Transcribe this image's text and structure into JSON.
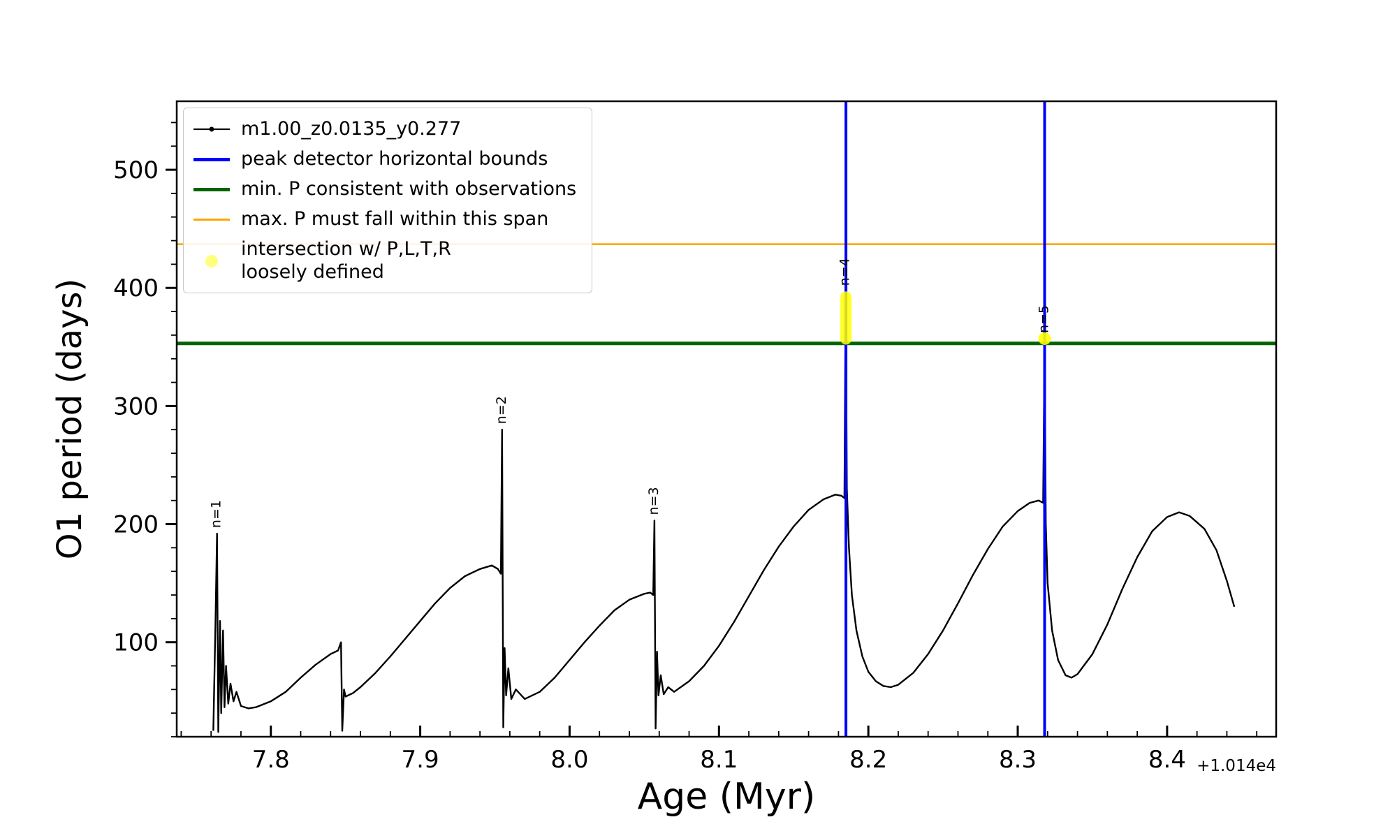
{
  "chart_data": {
    "type": "line",
    "title": "",
    "xlabel": "Age (Myr)",
    "ylabel": "O1 period (days)",
    "x_offset_text": "+1.014e4",
    "xlim": [
      7.737,
      8.473
    ],
    "ylim": [
      20,
      558
    ],
    "grid": false,
    "x_ticks": [
      7.8,
      7.9,
      8.0,
      8.1,
      8.2,
      8.3,
      8.4
    ],
    "x_tick_labels": [
      "7.8",
      "7.9",
      "8.0",
      "8.1",
      "8.2",
      "8.3",
      "8.4"
    ],
    "x_minor_step": 0.02,
    "y_ticks": [
      100,
      200,
      300,
      400,
      500
    ],
    "y_tick_labels": [
      "100",
      "200",
      "300",
      "400",
      "500"
    ],
    "y_minor_step": 20,
    "series": [
      {
        "name": "m1.00_z0.0135_y0.277",
        "color": "#000000",
        "points": [
          [
            7.7615,
            25
          ],
          [
            7.763,
            120
          ],
          [
            7.764,
            192
          ],
          [
            7.7648,
            24
          ],
          [
            7.766,
            118
          ],
          [
            7.7668,
            40
          ],
          [
            7.768,
            110
          ],
          [
            7.769,
            45
          ],
          [
            7.77,
            80
          ],
          [
            7.7715,
            48
          ],
          [
            7.773,
            65
          ],
          [
            7.775,
            50
          ],
          [
            7.777,
            58
          ],
          [
            7.78,
            46
          ],
          [
            7.785,
            44
          ],
          [
            7.79,
            45
          ],
          [
            7.8,
            50
          ],
          [
            7.81,
            58
          ],
          [
            7.82,
            70
          ],
          [
            7.83,
            81
          ],
          [
            7.84,
            90
          ],
          [
            7.845,
            93
          ],
          [
            7.847,
            100
          ],
          [
            7.8478,
            25
          ],
          [
            7.849,
            60
          ],
          [
            7.85,
            54
          ],
          [
            7.855,
            57
          ],
          [
            7.86,
            62
          ],
          [
            7.87,
            74
          ],
          [
            7.88,
            88
          ],
          [
            7.89,
            103
          ],
          [
            7.9,
            118
          ],
          [
            7.91,
            133
          ],
          [
            7.92,
            146
          ],
          [
            7.93,
            156
          ],
          [
            7.94,
            162
          ],
          [
            7.948,
            165
          ],
          [
            7.952,
            162
          ],
          [
            7.954,
            158
          ],
          [
            7.9548,
            280
          ],
          [
            7.9556,
            28
          ],
          [
            7.9565,
            95
          ],
          [
            7.9575,
            55
          ],
          [
            7.959,
            78
          ],
          [
            7.961,
            52
          ],
          [
            7.964,
            60
          ],
          [
            7.97,
            52
          ],
          [
            7.98,
            58
          ],
          [
            7.99,
            70
          ],
          [
            8.0,
            85
          ],
          [
            8.01,
            100
          ],
          [
            8.02,
            114
          ],
          [
            8.03,
            127
          ],
          [
            8.04,
            136
          ],
          [
            8.05,
            141
          ],
          [
            8.054,
            142
          ],
          [
            8.056,
            140
          ],
          [
            8.0568,
            203
          ],
          [
            8.0576,
            27
          ],
          [
            8.0585,
            92
          ],
          [
            8.0595,
            55
          ],
          [
            8.061,
            72
          ],
          [
            8.063,
            56
          ],
          [
            8.066,
            62
          ],
          [
            8.07,
            58
          ],
          [
            8.08,
            67
          ],
          [
            8.09,
            80
          ],
          [
            8.1,
            97
          ],
          [
            8.11,
            117
          ],
          [
            8.12,
            139
          ],
          [
            8.13,
            161
          ],
          [
            8.14,
            181
          ],
          [
            8.15,
            198
          ],
          [
            8.16,
            212
          ],
          [
            8.17,
            221
          ],
          [
            8.178,
            225
          ],
          [
            8.182,
            224
          ],
          [
            8.184,
            222
          ],
          [
            8.1848,
            397
          ],
          [
            8.1856,
            230
          ],
          [
            8.187,
            180
          ],
          [
            8.189,
            140
          ],
          [
            8.192,
            110
          ],
          [
            8.196,
            88
          ],
          [
            8.2,
            75
          ],
          [
            8.205,
            67
          ],
          [
            8.21,
            63
          ],
          [
            8.215,
            62
          ],
          [
            8.22,
            64
          ],
          [
            8.23,
            74
          ],
          [
            8.24,
            90
          ],
          [
            8.25,
            110
          ],
          [
            8.26,
            133
          ],
          [
            8.27,
            157
          ],
          [
            8.28,
            179
          ],
          [
            8.29,
            198
          ],
          [
            8.3,
            211
          ],
          [
            8.308,
            218
          ],
          [
            8.314,
            220
          ],
          [
            8.317,
            218
          ],
          [
            8.318,
            357
          ],
          [
            8.3188,
            200
          ],
          [
            8.32,
            150
          ],
          [
            8.323,
            110
          ],
          [
            8.327,
            85
          ],
          [
            8.332,
            72
          ],
          [
            8.336,
            70
          ],
          [
            8.34,
            73
          ],
          [
            8.35,
            90
          ],
          [
            8.36,
            115
          ],
          [
            8.37,
            145
          ],
          [
            8.38,
            172
          ],
          [
            8.39,
            194
          ],
          [
            8.4,
            206
          ],
          [
            8.408,
            210
          ],
          [
            8.415,
            207
          ],
          [
            8.425,
            196
          ],
          [
            8.433,
            178
          ],
          [
            8.44,
            152
          ],
          [
            8.445,
            130
          ]
        ]
      }
    ],
    "vlines": {
      "name": "peak detector horizontal bounds",
      "color": "#0000ff",
      "x": [
        8.185,
        8.318
      ],
      "line_width": 4
    },
    "hlines": [
      {
        "name": "min. P consistent with observations",
        "color": "#006400",
        "y": 353,
        "line_width": 5
      },
      {
        "name": "max. P must fall within this span",
        "color": "#ffa500",
        "y": 437,
        "line_width": 2.5
      }
    ],
    "intersection": {
      "name": "intersection w/ P,L,T,R loosely defined",
      "color": "#ffff00",
      "blob": {
        "x": 8.185,
        "y_min": 352,
        "y_max": 397
      },
      "dot": {
        "x": 8.318,
        "y": 357
      }
    },
    "peak_labels": [
      {
        "text": "n=1",
        "x": 7.764,
        "y": 192
      },
      {
        "text": "n=2",
        "x": 7.9548,
        "y": 280
      },
      {
        "text": "n=3",
        "x": 8.0568,
        "y": 203
      },
      {
        "text": "n=4",
        "x": 8.1848,
        "y": 397
      },
      {
        "text": "n=5",
        "x": 8.318,
        "y": 357
      }
    ]
  },
  "legend": {
    "items": [
      {
        "label": "m1.00_z0.0135_y0.277",
        "marker": "line-dot",
        "color": "#000000",
        "line_width": 2
      },
      {
        "label": "peak detector horizontal bounds",
        "marker": "line",
        "color": "#0000ff",
        "line_width": 5
      },
      {
        "label": "min. P consistent with observations",
        "marker": "line",
        "color": "#006400",
        "line_width": 5
      },
      {
        "label": "max. P must fall within this span",
        "marker": "line",
        "color": "#ffa500",
        "line_width": 3
      },
      {
        "label": "intersection w/ P,L,T,R",
        "label2": "loosely defined",
        "marker": "dot",
        "color": "#ffff00",
        "opacity": 0.5
      }
    ]
  }
}
